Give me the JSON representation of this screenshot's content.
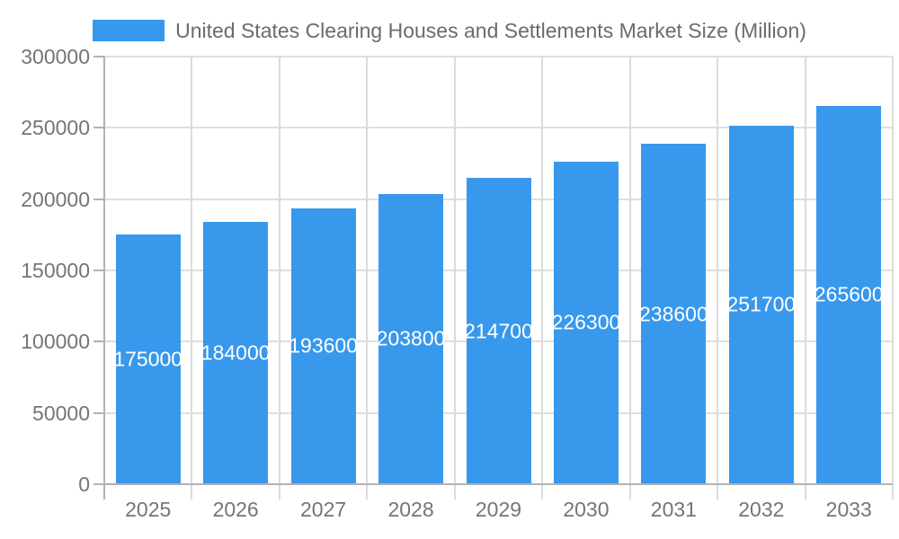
{
  "chart_data": {
    "type": "bar",
    "title": "United States Clearing Houses and Settlements Market Size (Million)",
    "legend_label": "United States Clearing Houses and Settlements Market Size (Million)",
    "legend_position": "top",
    "categories": [
      "2025",
      "2026",
      "2027",
      "2028",
      "2029",
      "2030",
      "2031",
      "2032",
      "2033"
    ],
    "series": [
      {
        "name": "United States Clearing Houses and Settlements Market Size (Million)",
        "values": [
          175000,
          184000,
          193600,
          203800,
          214700,
          226300,
          238600,
          251700,
          265600
        ]
      }
    ],
    "bar_labels": [
      "175000",
      "184000",
      "193600",
      "203800",
      "214700",
      "226300",
      "238600",
      "251700",
      "265600"
    ],
    "xlabel": "",
    "ylabel": "",
    "ylim": [
      0,
      300000
    ],
    "yticks": [
      0,
      50000,
      100000,
      150000,
      200000,
      250000,
      300000
    ],
    "ytick_labels": [
      "0",
      "50000",
      "100000",
      "150000",
      "200000",
      "250000",
      "300000"
    ],
    "grid": true,
    "colors": {
      "bar": "#3898ec",
      "axis_line": "#b2b2b2",
      "h_gridline": "#dedede",
      "v_gridline": "#dbdbdb",
      "axis_text": "#757575",
      "legend_text": "#6b6b6b",
      "bar_label_text": "#ffffff",
      "background": "#ffffff"
    }
  }
}
